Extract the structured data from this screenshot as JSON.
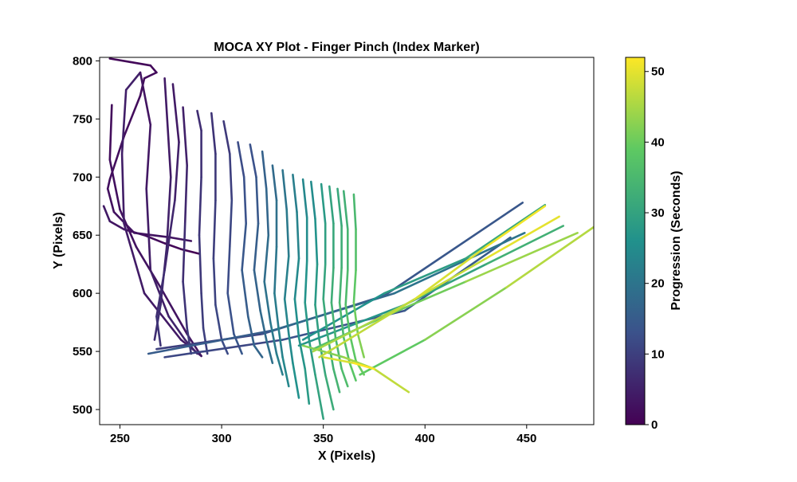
{
  "chart_data": {
    "type": "line",
    "title": "MOCA XY Plot - Finger Pinch (Index Marker)",
    "xlabel": "X (Pixels)",
    "ylabel": "Y (Pixels)",
    "xlim": [
      240,
      483
    ],
    "ylim": [
      487,
      803
    ],
    "xticks": [
      250,
      300,
      350,
      400,
      450
    ],
    "yticks": [
      500,
      550,
      600,
      650,
      700,
      750,
      800
    ],
    "grid": false,
    "colorbar": {
      "label": "Progression (Seconds)",
      "range": [
        0,
        52
      ],
      "ticks": [
        0,
        10,
        20,
        30,
        40,
        50
      ],
      "colormap": "viridis"
    },
    "series": [
      {
        "t_start": 0,
        "t_end": 4,
        "points": [
          [
            289,
            634
          ],
          [
            280,
            638
          ],
          [
            272,
            643
          ],
          [
            262,
            650
          ],
          [
            252,
            655
          ],
          [
            245,
            662
          ],
          [
            242,
            675
          ]
        ]
      },
      {
        "t_start": 1,
        "t_end": 3,
        "points": [
          [
            245,
            802
          ],
          [
            255,
            799
          ],
          [
            265,
            796
          ],
          [
            268,
            790
          ],
          [
            262,
            785
          ],
          [
            260,
            770
          ],
          [
            252,
            735
          ],
          [
            245,
            698
          ],
          [
            244,
            690
          ],
          [
            247,
            670
          ],
          [
            257,
            652
          ],
          [
            275,
            648
          ],
          [
            285,
            645
          ]
        ]
      },
      {
        "t_start": 2,
        "t_end": 5,
        "points": [
          [
            246,
            762
          ],
          [
            245,
            715
          ],
          [
            250,
            672
          ],
          [
            258,
            640
          ],
          [
            270,
            605
          ],
          [
            283,
            565
          ],
          [
            290,
            546
          ],
          [
            280,
            560
          ],
          [
            262,
            600
          ],
          [
            252,
            660
          ],
          [
            251,
            720
          ],
          [
            253,
            775
          ],
          [
            260,
            790
          ]
        ]
      },
      {
        "t_start": 3,
        "t_end": 6,
        "points": [
          [
            260,
            790
          ],
          [
            265,
            745
          ],
          [
            263,
            690
          ],
          [
            265,
            620
          ],
          [
            274,
            580
          ],
          [
            282,
            560
          ],
          [
            288,
            548
          ]
        ]
      },
      {
        "t_start": 4,
        "t_end": 7,
        "points": [
          [
            272,
            785
          ],
          [
            275,
            700
          ],
          [
            273,
            640
          ],
          [
            270,
            590
          ],
          [
            267,
            560
          ]
        ]
      },
      {
        "t_start": 4,
        "t_end": 8,
        "points": [
          [
            276,
            780
          ],
          [
            279,
            730
          ],
          [
            277,
            680
          ],
          [
            272,
            620
          ],
          [
            268,
            580
          ],
          [
            270,
            555
          ]
        ]
      },
      {
        "t_start": 5,
        "t_end": 9,
        "points": [
          [
            281,
            760
          ],
          [
            283,
            710
          ],
          [
            282,
            660
          ],
          [
            281,
            610
          ],
          [
            283,
            570
          ],
          [
            285,
            548
          ]
        ]
      },
      {
        "t_start": 7,
        "t_end": 10,
        "points": [
          [
            288,
            757
          ],
          [
            290,
            740
          ],
          [
            290,
            700
          ],
          [
            289,
            650
          ],
          [
            290,
            600
          ],
          [
            291,
            570
          ],
          [
            293,
            548
          ]
        ]
      },
      {
        "t_start": 8,
        "t_end": 12,
        "points": [
          [
            295,
            755
          ],
          [
            297,
            720
          ],
          [
            297,
            680
          ],
          [
            296,
            630
          ],
          [
            297,
            590
          ],
          [
            300,
            560
          ],
          [
            303,
            548
          ]
        ]
      },
      {
        "t_start": 9,
        "t_end": 14,
        "points": [
          [
            301,
            748
          ],
          [
            304,
            720
          ],
          [
            305,
            680
          ],
          [
            304,
            640
          ],
          [
            303,
            600
          ],
          [
            306,
            565
          ],
          [
            310,
            548
          ]
        ]
      },
      {
        "t_start": 10,
        "t_end": 14,
        "points": [
          [
            268,
            552
          ],
          [
            320,
            565
          ],
          [
            380,
            598
          ],
          [
            448,
            678
          ]
        ]
      },
      {
        "t_start": 11,
        "t_end": 15,
        "points": [
          [
            272,
            545
          ],
          [
            330,
            560
          ],
          [
            390,
            585
          ],
          [
            442,
            648
          ]
        ]
      },
      {
        "t_start": 12,
        "t_end": 17,
        "points": [
          [
            308,
            730
          ],
          [
            311,
            700
          ],
          [
            312,
            660
          ],
          [
            310,
            620
          ],
          [
            313,
            580
          ],
          [
            316,
            555
          ],
          [
            320,
            545
          ]
        ]
      },
      {
        "t_start": 13,
        "t_end": 19,
        "points": [
          [
            314,
            728
          ],
          [
            317,
            700
          ],
          [
            318,
            660
          ],
          [
            316,
            620
          ],
          [
            319,
            585
          ],
          [
            322,
            560
          ],
          [
            325,
            540
          ]
        ]
      },
      {
        "t_start": 15,
        "t_end": 20,
        "points": [
          [
            264,
            548
          ],
          [
            325,
            568
          ],
          [
            385,
            600
          ],
          [
            449,
            652
          ]
        ]
      },
      {
        "t_start": 16,
        "t_end": 22,
        "points": [
          [
            320,
            722
          ],
          [
            322,
            690
          ],
          [
            323,
            650
          ],
          [
            321,
            610
          ],
          [
            324,
            575
          ],
          [
            327,
            548
          ],
          [
            330,
            530
          ]
        ]
      },
      {
        "t_start": 18,
        "t_end": 24,
        "points": [
          [
            325,
            710
          ],
          [
            327,
            680
          ],
          [
            327,
            640
          ],
          [
            326,
            600
          ],
          [
            328,
            570
          ],
          [
            330,
            545
          ],
          [
            333,
            520
          ]
        ]
      },
      {
        "t_start": 20,
        "t_end": 26,
        "points": [
          [
            330,
            706
          ],
          [
            332,
            672
          ],
          [
            333,
            632
          ],
          [
            331,
            595
          ],
          [
            333,
            565
          ],
          [
            335,
            540
          ],
          [
            338,
            510
          ]
        ]
      },
      {
        "t_start": 22,
        "t_end": 28,
        "points": [
          [
            335,
            702
          ],
          [
            337,
            670
          ],
          [
            338,
            630
          ],
          [
            336,
            595
          ],
          [
            338,
            562
          ],
          [
            341,
            535
          ],
          [
            343,
            505
          ]
        ]
      },
      {
        "t_start": 24,
        "t_end": 30,
        "points": [
          [
            340,
            698
          ],
          [
            342,
            665
          ],
          [
            342,
            628
          ],
          [
            341,
            592
          ],
          [
            343,
            560
          ],
          [
            346,
            530
          ],
          [
            350,
            492
          ]
        ]
      },
      {
        "t_start": 25,
        "t_end": 32,
        "points": [
          [
            344,
            696
          ],
          [
            346,
            664
          ],
          [
            347,
            625
          ],
          [
            346,
            590
          ],
          [
            348,
            560
          ],
          [
            351,
            530
          ],
          [
            355,
            500
          ]
        ]
      },
      {
        "t_start": 26,
        "t_end": 31,
        "points": [
          [
            340,
            560
          ],
          [
            380,
            600
          ],
          [
            420,
            630
          ],
          [
            459,
            676
          ]
        ]
      },
      {
        "t_start": 27,
        "t_end": 33,
        "points": [
          [
            338,
            555
          ],
          [
            390,
            590
          ],
          [
            430,
            625
          ],
          [
            468,
            658
          ]
        ]
      },
      {
        "t_start": 28,
        "t_end": 34,
        "points": [
          [
            349,
            694
          ],
          [
            351,
            660
          ],
          [
            351,
            625
          ],
          [
            350,
            595
          ],
          [
            352,
            565
          ],
          [
            355,
            535
          ],
          [
            358,
            515
          ]
        ]
      },
      {
        "t_start": 30,
        "t_end": 36,
        "points": [
          [
            353,
            692
          ],
          [
            355,
            660
          ],
          [
            355,
            622
          ],
          [
            354,
            592
          ],
          [
            356,
            562
          ],
          [
            359,
            535
          ],
          [
            362,
            520
          ]
        ]
      },
      {
        "t_start": 31,
        "t_end": 38,
        "points": [
          [
            357,
            690
          ],
          [
            359,
            658
          ],
          [
            359,
            622
          ],
          [
            358,
            592
          ],
          [
            360,
            562
          ],
          [
            363,
            540
          ],
          [
            366,
            525
          ]
        ]
      },
      {
        "t_start": 33,
        "t_end": 40,
        "points": [
          [
            360,
            688
          ],
          [
            362,
            655
          ],
          [
            362,
            620
          ],
          [
            361,
            590
          ],
          [
            363,
            565
          ],
          [
            366,
            542
          ],
          [
            370,
            530
          ]
        ]
      },
      {
        "t_start": 35,
        "t_end": 42,
        "points": [
          [
            365,
            685
          ],
          [
            366,
            655
          ],
          [
            366,
            620
          ],
          [
            365,
            592
          ],
          [
            367,
            565
          ],
          [
            370,
            545
          ]
        ]
      },
      {
        "t_start": 37,
        "t_end": 44,
        "points": [
          [
            345,
            552
          ],
          [
            380,
            580
          ],
          [
            420,
            610
          ],
          [
            475,
            652
          ]
        ]
      },
      {
        "t_start": 39,
        "t_end": 46,
        "points": [
          [
            368,
            530
          ],
          [
            400,
            560
          ],
          [
            440,
            605
          ],
          [
            483,
            657
          ]
        ]
      },
      {
        "t_start": 42,
        "t_end": 47,
        "points": [
          [
            340,
            555
          ],
          [
            360,
            545
          ],
          [
            375,
            535
          ],
          [
            392,
            515
          ]
        ]
      },
      {
        "t_start": 45,
        "t_end": 50,
        "points": [
          [
            345,
            550
          ],
          [
            390,
            590
          ],
          [
            430,
            630
          ],
          [
            466,
            666
          ]
        ]
      },
      {
        "t_start": 47,
        "t_end": 51,
        "points": [
          [
            348,
            545
          ],
          [
            395,
            595
          ],
          [
            430,
            640
          ],
          [
            459,
            675
          ]
        ]
      },
      {
        "t_start": 49,
        "t_end": 52,
        "points": [
          [
            350,
            545
          ],
          [
            365,
            540
          ],
          [
            375,
            535
          ]
        ]
      }
    ]
  }
}
